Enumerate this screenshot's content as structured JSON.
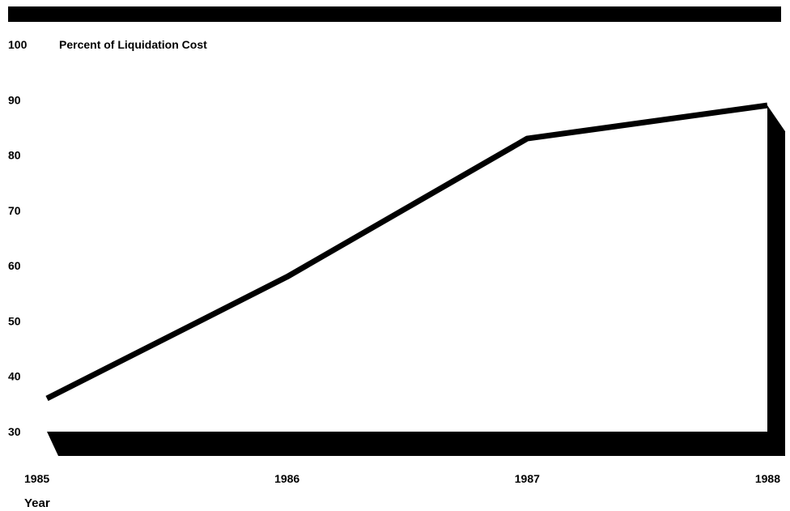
{
  "chart_data": {
    "type": "line",
    "title": "Percent of Liquidation Cost",
    "xlabel": "Year",
    "ylabel": "",
    "categories": [
      "1985",
      "1986",
      "1987",
      "1988"
    ],
    "x": [
      1985,
      1986,
      1987,
      1988
    ],
    "values": [
      36,
      58,
      83,
      89
    ],
    "ylim": [
      30,
      100
    ],
    "yticks": [
      30,
      40,
      50,
      60,
      70,
      80,
      90,
      100
    ],
    "xticks": [
      "1985",
      "1986",
      "1987",
      "1988"
    ],
    "grid": false,
    "legend": "none",
    "colors": {
      "line": "#000000",
      "frame": "#000000",
      "background": "#ffffff"
    }
  }
}
